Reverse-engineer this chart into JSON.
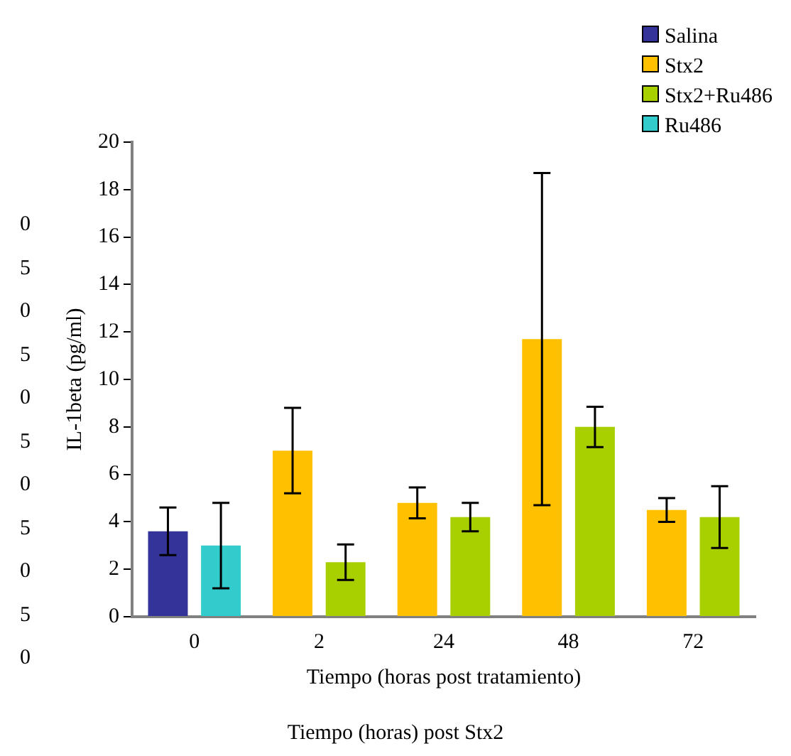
{
  "chart_data": {
    "type": "bar",
    "xlabel": "Tiempo (horas post tratamiento)",
    "ylabel": "IL-1beta (pg/ml)",
    "categories": [
      "0",
      "2",
      "24",
      "48",
      "72"
    ],
    "series": [
      {
        "name": "Salina",
        "color": "#333399",
        "values": [
          3.6,
          null,
          null,
          null,
          null
        ],
        "errors": [
          1.0,
          null,
          null,
          null,
          null
        ]
      },
      {
        "name": "Stx2",
        "color": "#ffc000",
        "values": [
          null,
          7.0,
          4.8,
          11.7,
          4.5
        ],
        "errors": [
          null,
          1.8,
          0.65,
          7.0,
          0.5
        ]
      },
      {
        "name": "Stx2+Ru486",
        "color": "#a8d000",
        "values": [
          null,
          2.3,
          4.2,
          8.0,
          4.2
        ],
        "errors": [
          null,
          0.75,
          0.6,
          0.85,
          1.3
        ]
      },
      {
        "name": "Ru486",
        "color": "#33cccc",
        "values": [
          3.0,
          null,
          null,
          null,
          null
        ],
        "errors": [
          1.8,
          null,
          null,
          null,
          null
        ]
      }
    ],
    "ylim": [
      0,
      20
    ],
    "yticks": [
      0,
      2,
      4,
      6,
      8,
      10,
      12,
      14,
      16,
      18,
      20
    ],
    "grid": false,
    "legend": "top right",
    "annotations": [
      "0",
      "5",
      "0",
      "5",
      "0",
      "5",
      "0",
      "5",
      "0",
      "5",
      "0",
      "Tiempo (horas) post Stx2"
    ]
  }
}
